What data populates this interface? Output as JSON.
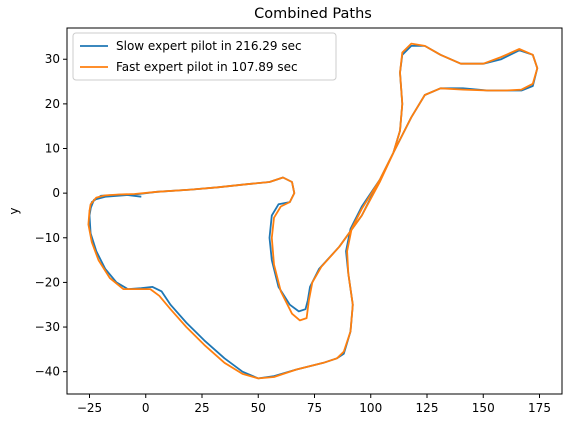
{
  "chart_data": {
    "type": "line",
    "title": "Combined Paths",
    "xlabel": "x",
    "ylabel": "y",
    "xlim": [
      -35,
      185
    ],
    "ylim": [
      -45,
      37
    ],
    "xticks": [
      -25,
      0,
      25,
      50,
      75,
      100,
      125,
      150,
      175
    ],
    "yticks": [
      -40,
      -30,
      -20,
      -10,
      0,
      10,
      20,
      30
    ],
    "grid": false,
    "legend_position": "upper-left",
    "series": [
      {
        "name": "Slow expert pilot in 216.29 sec",
        "color": "#1f77b4",
        "points": [
          [
            -2,
            -0.8
          ],
          [
            -10,
            -0.3
          ],
          [
            -20,
            -0.6
          ],
          [
            -24,
            -2
          ],
          [
            -25,
            -5
          ],
          [
            -24.5,
            -9
          ],
          [
            -22,
            -13
          ],
          [
            -18,
            -17
          ],
          [
            -13,
            -20
          ],
          [
            -8,
            -21.5
          ],
          [
            -2,
            -21.3
          ],
          [
            3,
            -21
          ],
          [
            7,
            -22
          ],
          [
            11,
            -25
          ],
          [
            18,
            -29
          ],
          [
            26,
            -33
          ],
          [
            35,
            -37
          ],
          [
            43,
            -40
          ],
          [
            50,
            -41.5
          ],
          [
            57,
            -41
          ],
          [
            67,
            -39.5
          ],
          [
            79,
            -38
          ],
          [
            85,
            -37
          ],
          [
            88,
            -36
          ],
          [
            91,
            -31
          ],
          [
            92,
            -25
          ],
          [
            90,
            -18
          ],
          [
            89,
            -13
          ],
          [
            91,
            -8
          ],
          [
            96,
            -3
          ],
          [
            104,
            3
          ],
          [
            111,
            10
          ],
          [
            118,
            17
          ],
          [
            124,
            22
          ],
          [
            131,
            23.5
          ],
          [
            141,
            23.5
          ],
          [
            152,
            23
          ],
          [
            160,
            23
          ],
          [
            167,
            23
          ],
          [
            172,
            24
          ],
          [
            174,
            28
          ],
          [
            172,
            31
          ],
          [
            166,
            32
          ],
          [
            158,
            30
          ],
          [
            150,
            29
          ],
          [
            140,
            29
          ],
          [
            131,
            31
          ],
          [
            124,
            33
          ],
          [
            118,
            33
          ],
          [
            114,
            31
          ],
          [
            113,
            27
          ],
          [
            114,
            20
          ],
          [
            113,
            14
          ],
          [
            110,
            9
          ],
          [
            104,
            3
          ],
          [
            96,
            -5
          ],
          [
            86,
            -12
          ],
          [
            77,
            -17
          ],
          [
            73,
            -21
          ],
          [
            72,
            -24
          ],
          [
            71,
            -26
          ],
          [
            68,
            -26.5
          ],
          [
            64,
            -25
          ],
          [
            59,
            -21
          ],
          [
            56,
            -15
          ],
          [
            55,
            -10
          ],
          [
            56,
            -5
          ],
          [
            59,
            -2.5
          ],
          [
            64,
            -2
          ],
          [
            66,
            0
          ],
          [
            65,
            2.5
          ],
          [
            61,
            3.5
          ],
          [
            55,
            2.5
          ],
          [
            45,
            2
          ],
          [
            32,
            1.3
          ],
          [
            20,
            0.8
          ],
          [
            5,
            0.3
          ],
          [
            -3,
            -0.2
          ],
          [
            -10,
            -0.5
          ],
          [
            -18,
            -0.8
          ],
          [
            -23,
            -1.5
          ],
          [
            -25,
            -4
          ]
        ]
      },
      {
        "name": "Fast expert pilot in 107.89 sec",
        "color": "#ff7f0e",
        "points": [
          [
            -25,
            -4
          ],
          [
            -25.5,
            -7
          ],
          [
            -24,
            -11
          ],
          [
            -21,
            -15
          ],
          [
            -16,
            -19
          ],
          [
            -10,
            -21.5
          ],
          [
            -4,
            -21.5
          ],
          [
            2,
            -21.5
          ],
          [
            6,
            -23
          ],
          [
            11,
            -26
          ],
          [
            18,
            -30
          ],
          [
            26,
            -34
          ],
          [
            35,
            -38
          ],
          [
            43,
            -40.5
          ],
          [
            50,
            -41.5
          ],
          [
            57,
            -41.2
          ],
          [
            67,
            -39.5
          ],
          [
            79,
            -38
          ],
          [
            85,
            -37
          ],
          [
            88,
            -35.5
          ],
          [
            91,
            -31
          ],
          [
            92,
            -25
          ],
          [
            90,
            -18
          ],
          [
            89.5,
            -13
          ],
          [
            91.5,
            -8
          ],
          [
            96,
            -3.5
          ],
          [
            104,
            3
          ],
          [
            111,
            10
          ],
          [
            118,
            17
          ],
          [
            124,
            22
          ],
          [
            131,
            23.5
          ],
          [
            141,
            23.2
          ],
          [
            152,
            23
          ],
          [
            160,
            23
          ],
          [
            167,
            23.2
          ],
          [
            172,
            24.5
          ],
          [
            174,
            28
          ],
          [
            172,
            31
          ],
          [
            166,
            32.3
          ],
          [
            158,
            30.5
          ],
          [
            150,
            29
          ],
          [
            140,
            29
          ],
          [
            131,
            31
          ],
          [
            124,
            33
          ],
          [
            118,
            33.5
          ],
          [
            114,
            31.5
          ],
          [
            113,
            27
          ],
          [
            114,
            20
          ],
          [
            113,
            14
          ],
          [
            110,
            9
          ],
          [
            104,
            2.5
          ],
          [
            96,
            -5
          ],
          [
            86,
            -12
          ],
          [
            78,
            -16.5
          ],
          [
            74,
            -20
          ],
          [
            72.5,
            -24
          ],
          [
            71.5,
            -28
          ],
          [
            68.5,
            -28.5
          ],
          [
            65,
            -27
          ],
          [
            60,
            -22
          ],
          [
            57,
            -16
          ],
          [
            56,
            -10
          ],
          [
            57,
            -5.5
          ],
          [
            60,
            -3
          ],
          [
            64,
            -2
          ],
          [
            66,
            0
          ],
          [
            65,
            2.5
          ],
          [
            61,
            3.5
          ],
          [
            55,
            2.5
          ],
          [
            45,
            2
          ],
          [
            32,
            1.3
          ],
          [
            20,
            0.8
          ],
          [
            5,
            0.3
          ],
          [
            -5,
            -0.2
          ],
          [
            -12,
            -0.3
          ],
          [
            -18,
            -0.5
          ],
          [
            -22,
            -1
          ],
          [
            -24.5,
            -2.5
          ],
          [
            -25,
            -4
          ]
        ]
      }
    ]
  }
}
